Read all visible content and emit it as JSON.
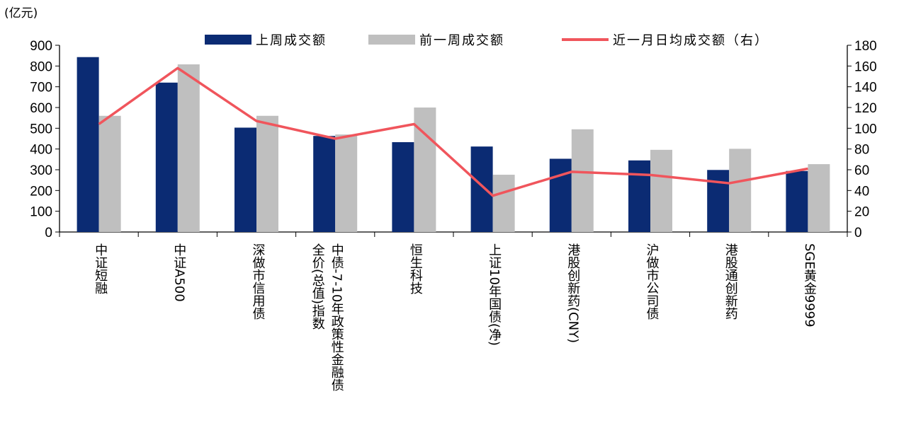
{
  "chart_data": {
    "type": "bar",
    "unit_label": "(亿元)",
    "categories": [
      [
        "中证短融"
      ],
      [
        "中证A500"
      ],
      [
        "深做市信用债"
      ],
      [
        "中债-7-10年政策性金融债",
        "全价(总值)指数"
      ],
      [
        "恒生科技"
      ],
      [
        "上证10年国债(净)"
      ],
      [
        "港股创新药(CNY)"
      ],
      [
        "沪做市公司债"
      ],
      [
        "港股通创新药"
      ],
      [
        "SGE黄金9999"
      ]
    ],
    "series": [
      {
        "name": "上周成交额",
        "type": "bar",
        "axis": "left",
        "color": "#0b2b73",
        "values": [
          843,
          720,
          503,
          463,
          433,
          412,
          353,
          345,
          299,
          294
        ]
      },
      {
        "name": "前一周成交额",
        "type": "bar",
        "axis": "left",
        "color": "#bfbfbf",
        "values": [
          560,
          808,
          560,
          470,
          600,
          276,
          495,
          396,
          401,
          327
        ]
      },
      {
        "name": "近一月日均成交额（右）",
        "type": "line",
        "axis": "right",
        "color": "#f0555c",
        "values": [
          104,
          158,
          107,
          90,
          104,
          35,
          58,
          55,
          47,
          61
        ]
      }
    ],
    "ylim_left": [
      0,
      900
    ],
    "yticks_left": [
      0,
      100,
      200,
      300,
      400,
      500,
      600,
      700,
      800,
      900
    ],
    "ylim_right": [
      0,
      180
    ],
    "yticks_right": [
      0,
      20,
      40,
      60,
      80,
      100,
      120,
      140,
      160,
      180
    ],
    "legend_position": "top"
  }
}
